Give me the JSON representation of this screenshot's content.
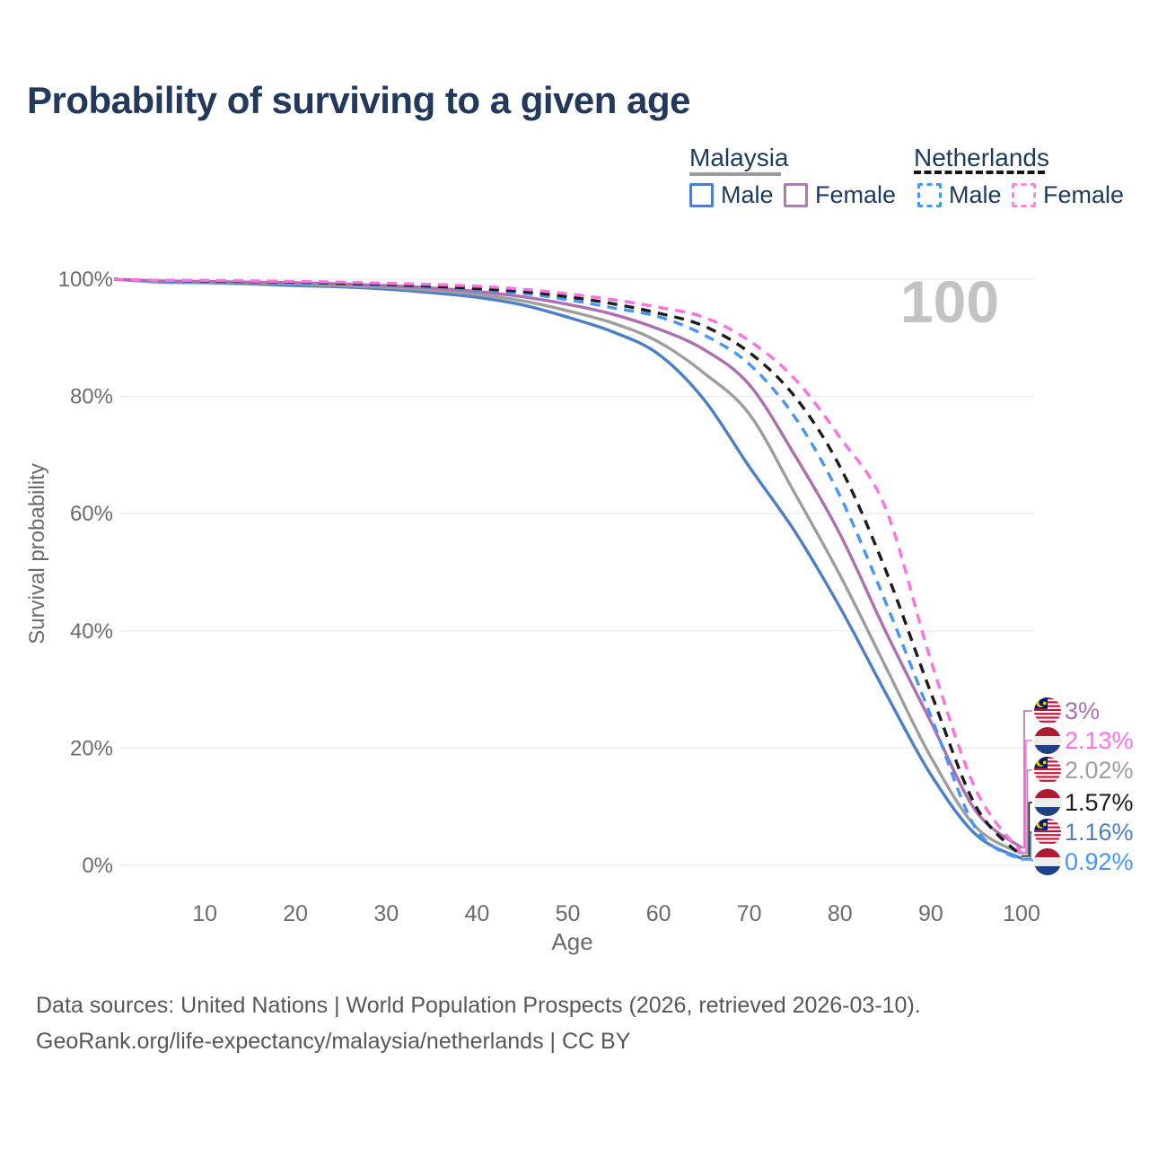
{
  "title": "Probability of surviving to a given age",
  "watermark_age": "100",
  "legend": {
    "groups": [
      {
        "name": "Malaysia",
        "line_style": "solid",
        "line_color": "#9a9a9a",
        "items": [
          {
            "label": "Male",
            "color": "#4d7fc9"
          },
          {
            "label": "Female",
            "color": "#b07ab2"
          }
        ]
      },
      {
        "name": "Netherlands",
        "line_style": "dashed",
        "line_color": "#151515",
        "items": [
          {
            "label": "Male",
            "color": "#4596f5"
          },
          {
            "label": "Female",
            "color": "#ff85e3"
          }
        ]
      }
    ]
  },
  "chart_data": {
    "type": "line",
    "title": "Probability of surviving to a given age",
    "xlabel": "Age",
    "ylabel": "Survival probability",
    "xlim": [
      0,
      100
    ],
    "ylim": [
      0,
      100
    ],
    "grid": "horizontal",
    "x_ticks": [
      10,
      20,
      30,
      40,
      50,
      60,
      70,
      80,
      90,
      100
    ],
    "y_ticks": [
      {
        "value": 100,
        "label": "100%"
      },
      {
        "value": 80,
        "label": "80%"
      },
      {
        "value": 60,
        "label": "60%"
      },
      {
        "value": 40,
        "label": "40%"
      },
      {
        "value": 20,
        "label": "20%"
      },
      {
        "value": 0,
        "label": "0%"
      }
    ],
    "x": [
      0,
      5,
      10,
      15,
      20,
      25,
      30,
      35,
      40,
      45,
      50,
      55,
      60,
      65,
      70,
      75,
      80,
      85,
      90,
      95,
      100
    ],
    "series": [
      {
        "id": "malaysia-male",
        "name": "Malaysia Male",
        "country": "malaysia",
        "sex": "male",
        "line": "solid",
        "color": "#4d7fc9",
        "end_label": "1.16%",
        "values": [
          100,
          99.5,
          99.4,
          99.2,
          98.9,
          98.7,
          98.3,
          97.7,
          96.9,
          95.6,
          93.5,
          91.0,
          87.2,
          79.5,
          68.0,
          57.0,
          44.0,
          29.5,
          15.5,
          5.2,
          1.16
        ]
      },
      {
        "id": "malaysia-both",
        "name": "Malaysia Both sexes",
        "country": "malaysia",
        "sex": "both",
        "line": "solid",
        "color": "#9e9e9e",
        "end_label": "2.02%",
        "values": [
          100,
          99.6,
          99.5,
          99.4,
          99.2,
          98.9,
          98.6,
          98.1,
          97.4,
          96.3,
          94.6,
          92.5,
          89.3,
          84.0,
          77.0,
          63.5,
          49.5,
          34.0,
          18.5,
          6.5,
          2.02
        ]
      },
      {
        "id": "malaysia-female",
        "name": "Malaysia Female",
        "country": "malaysia",
        "sex": "female",
        "line": "solid",
        "color": "#ad6fb0",
        "end_label": "3%",
        "values": [
          100,
          99.7,
          99.6,
          99.5,
          99.4,
          99.2,
          98.9,
          98.5,
          97.9,
          97.0,
          95.7,
          94.0,
          91.5,
          88.0,
          82.0,
          70.0,
          56.5,
          40.0,
          24.5,
          9.2,
          3.0
        ]
      },
      {
        "id": "netherlands-male",
        "name": "Netherlands Male",
        "country": "netherlands",
        "sex": "male",
        "line": "dashed",
        "color": "#4596f5",
        "end_label": "0.92%",
        "values": [
          100,
          99.7,
          99.6,
          99.5,
          99.4,
          99.2,
          99.0,
          98.7,
          98.2,
          97.6,
          96.5,
          95.1,
          93.6,
          90.5,
          85.5,
          76.5,
          63.0,
          45.0,
          25.5,
          6.2,
          0.92
        ]
      },
      {
        "id": "netherlands-both",
        "name": "Netherlands Both sexes",
        "country": "netherlands",
        "sex": "both",
        "line": "dashed",
        "color": "#1c1c1c",
        "end_label": "1.57%",
        "values": [
          100,
          99.8,
          99.7,
          99.6,
          99.5,
          99.3,
          99.1,
          98.8,
          98.4,
          97.9,
          97.0,
          95.8,
          94.2,
          92.0,
          87.5,
          80.0,
          68.0,
          50.5,
          29.5,
          10.0,
          1.57
        ]
      },
      {
        "id": "netherlands-female",
        "name": "Netherlands Female",
        "country": "netherlands",
        "sex": "female",
        "line": "dashed",
        "color": "#ff70e2",
        "end_label": "2.13%",
        "values": [
          100,
          99.8,
          99.8,
          99.7,
          99.6,
          99.5,
          99.3,
          99.1,
          98.8,
          98.3,
          97.5,
          96.5,
          95.2,
          93.5,
          89.5,
          83.0,
          73.0,
          61.0,
          35.0,
          12.8,
          2.13
        ]
      }
    ]
  },
  "flag_colors": {
    "malaysia": {
      "stripe_red": "#d01030",
      "stripe_white": "#ffffff",
      "canton_blue": "#001a70",
      "crescent_yellow": "#ffcc00"
    },
    "netherlands": {
      "red": "#ad1d32",
      "white": "#ededed",
      "blue": "#1f4185"
    }
  },
  "footer": {
    "line1": "Data sources: United Nations | World Population Prospects (2026, retrieved 2026-03-10).",
    "line2": "GeoRank.org/life-expectancy/malaysia/netherlands | CC BY"
  }
}
